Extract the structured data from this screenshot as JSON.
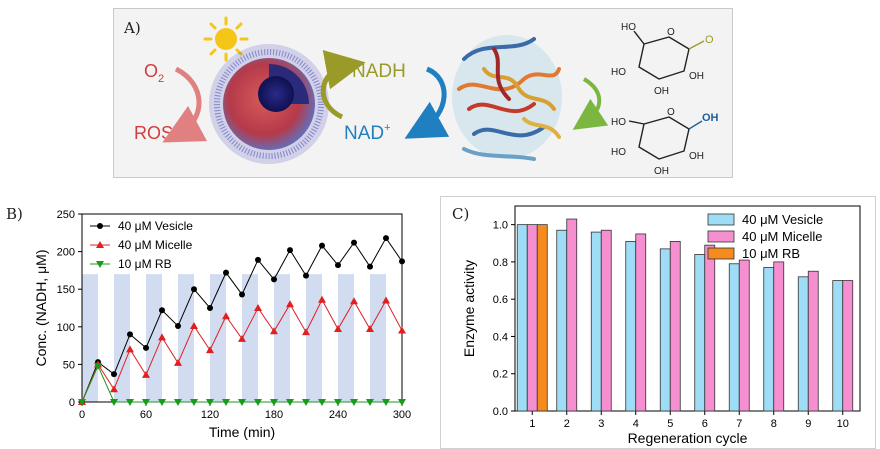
{
  "panel_a": {
    "label": "A)",
    "o2_label": "O",
    "o2_subscript": "2",
    "ros_label": "ROS",
    "nadh_label": "NADH",
    "nad_label": "NAD",
    "nad_superscript": "+",
    "oh_label": "OH",
    "ho_label": "HO",
    "o_label": "O",
    "colors": {
      "o2": "#d23c3c",
      "ros": "#d23c3c",
      "nadh": "#9a9a28",
      "nad": "#1f7fc0",
      "sun": "#f5c518"
    }
  },
  "chart_data": [
    {
      "panel_label": "B)",
      "type": "line",
      "xlabel": "Time (min)",
      "ylabel": "Conc. (NADH, μM)",
      "xlim": [
        0,
        300
      ],
      "ylim": [
        0,
        250
      ],
      "xticks": [
        0,
        60,
        120,
        180,
        240,
        300
      ],
      "yticks": [
        0,
        50,
        100,
        150,
        200,
        250
      ],
      "illumination_windows": [
        [
          0,
          15
        ],
        [
          30,
          45
        ],
        [
          60,
          75
        ],
        [
          90,
          105
        ],
        [
          120,
          135
        ],
        [
          150,
          165
        ],
        [
          180,
          195
        ],
        [
          210,
          225
        ],
        [
          240,
          255
        ],
        [
          270,
          285
        ]
      ],
      "illumination_height": 170,
      "legend_position": "top-left",
      "series": [
        {
          "name": "40 μM  Vesicle",
          "color": "#000000",
          "marker": "circle",
          "x": [
            0,
            15,
            30,
            45,
            60,
            75,
            90,
            105,
            120,
            135,
            150,
            165,
            180,
            195,
            210,
            225,
            240,
            255,
            270,
            285,
            300
          ],
          "y": [
            0,
            53,
            37,
            90,
            72,
            122,
            101,
            150,
            125,
            172,
            143,
            189,
            163,
            202,
            168,
            208,
            182,
            212,
            180,
            218,
            187
          ]
        },
        {
          "name": "40 μM  Micelle",
          "color": "#e02020",
          "marker": "triangle-up",
          "x": [
            0,
            15,
            30,
            45,
            60,
            75,
            90,
            105,
            120,
            135,
            150,
            165,
            180,
            195,
            210,
            225,
            240,
            255,
            270,
            285,
            300
          ],
          "y": [
            0,
            50,
            17,
            70,
            36,
            86,
            52,
            101,
            69,
            114,
            84,
            125,
            94,
            130,
            93,
            136,
            97,
            134,
            97,
            135,
            95
          ]
        },
        {
          "name": "10 μM  RB",
          "color": "#1a9a1a",
          "marker": "triangle-down",
          "x": [
            0,
            15,
            30,
            45,
            60,
            75,
            90,
            105,
            120,
            135,
            150,
            165,
            180,
            195,
            210,
            225,
            240,
            255,
            270,
            285,
            300
          ],
          "y": [
            0,
            48,
            0,
            0,
            0,
            0,
            0,
            0,
            0,
            0,
            0,
            0,
            0,
            0,
            0,
            0,
            0,
            0,
            0,
            0,
            0
          ]
        }
      ]
    },
    {
      "panel_label": "C)",
      "type": "bar",
      "xlabel": "Regeneration cycle",
      "ylabel": "Enzyme activity",
      "ylim": [
        0,
        1.1
      ],
      "yticks": [
        "0.0",
        "0.2",
        "0.4",
        "0.6",
        "0.8",
        "1.0"
      ],
      "categories": [
        "1",
        "2",
        "3",
        "4",
        "5",
        "6",
        "7",
        "8",
        "9",
        "10"
      ],
      "legend_position": "top-right",
      "series": [
        {
          "name": "40 μM  Vesicle",
          "color": "#9fdcf5",
          "values": [
            1.0,
            0.97,
            0.96,
            0.91,
            0.87,
            0.84,
            0.79,
            0.77,
            0.72,
            0.7
          ]
        },
        {
          "name": "40 μM  Micelle",
          "color": "#f58fcf",
          "values": [
            1.0,
            1.03,
            0.97,
            0.95,
            0.91,
            0.89,
            0.81,
            0.8,
            0.75,
            0.7
          ]
        },
        {
          "name": "10 μM  RB",
          "color": "#f58a1f",
          "values": [
            1.0,
            null,
            null,
            null,
            null,
            null,
            null,
            null,
            null,
            null
          ]
        }
      ]
    }
  ]
}
